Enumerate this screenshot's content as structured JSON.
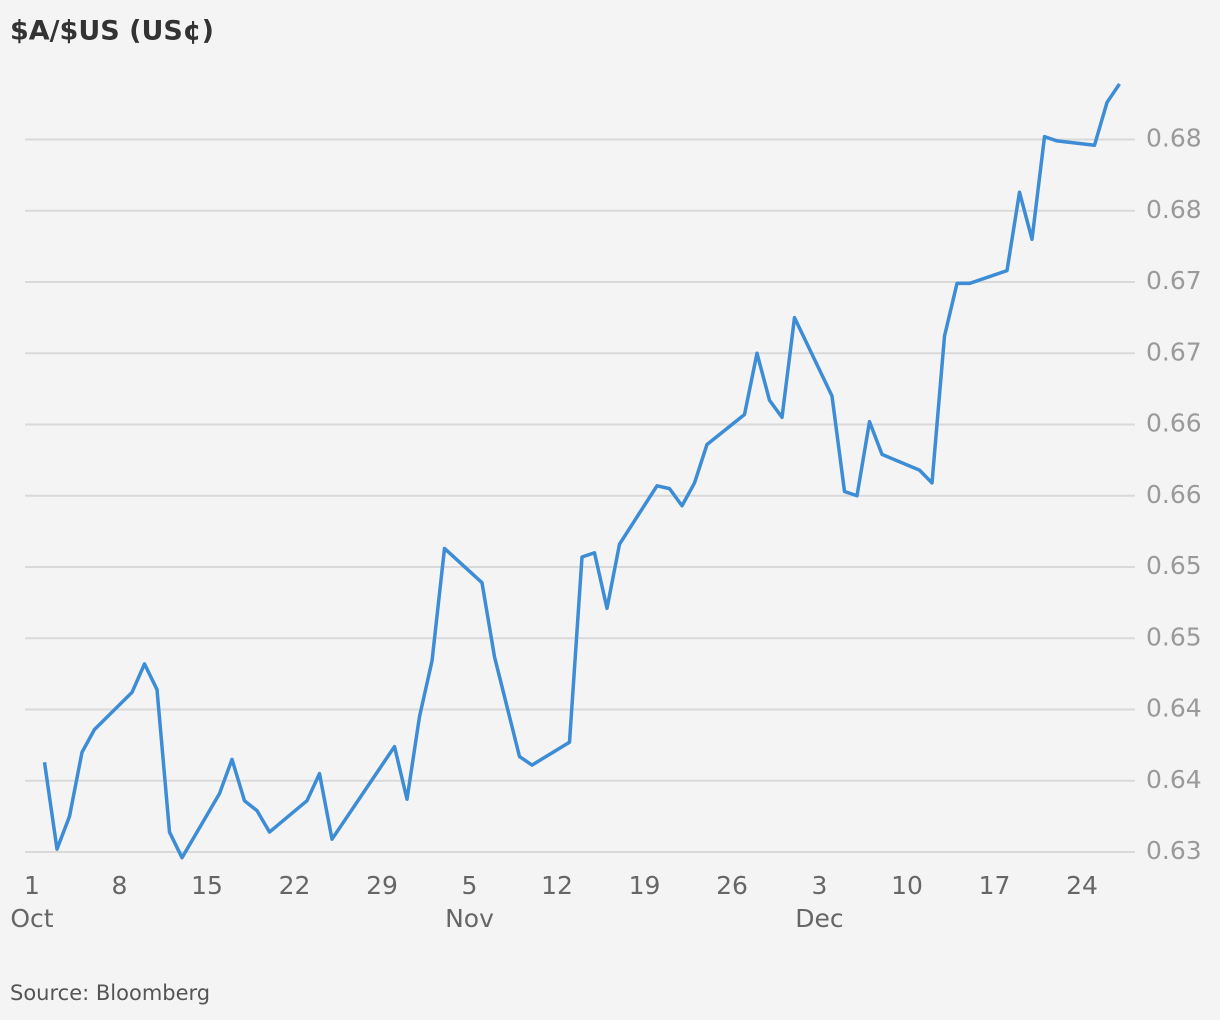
{
  "chart_data": {
    "type": "line",
    "title": "$A/$US (US¢)",
    "source": "Source: Bloomberg",
    "x": [
      "Oct 2",
      "Oct 3",
      "Oct 4",
      "Oct 5",
      "Oct 6",
      "Oct 9",
      "Oct 10",
      "Oct 11",
      "Oct 12",
      "Oct 13",
      "Oct 16",
      "Oct 17",
      "Oct 18",
      "Oct 19",
      "Oct 20",
      "Oct 23",
      "Oct 24",
      "Oct 25",
      "Oct 30",
      "Oct 31",
      "Nov 1",
      "Nov 2",
      "Nov 3",
      "Nov 6",
      "Nov 7",
      "Nov 9",
      "Nov 10",
      "Nov 13",
      "Nov 14",
      "Nov 15",
      "Nov 16",
      "Nov 17",
      "Nov 20",
      "Nov 21",
      "Nov 22",
      "Nov 23",
      "Nov 24",
      "Nov 27",
      "Nov 28",
      "Nov 29",
      "Nov 30",
      "Dec 1",
      "Dec 4",
      "Dec 5",
      "Dec 6",
      "Dec 7",
      "Dec 8",
      "Dec 11",
      "Dec 12",
      "Dec 13",
      "Dec 14",
      "Dec 15",
      "Dec 18",
      "Dec 19",
      "Dec 20",
      "Dec 21",
      "Dec 22",
      "Dec 25",
      "Dec 26",
      "Dec 27"
    ],
    "series": [
      {
        "color": "#3d8cd6",
        "values": [
          0.6363,
          0.6302,
          0.6325,
          0.637,
          0.6386,
          0.6412,
          0.6432,
          0.6414,
          0.6314,
          0.6296,
          0.6341,
          0.6365,
          0.6336,
          0.6329,
          0.6314,
          0.6336,
          0.6355,
          0.6309,
          0.6374,
          0.6337,
          0.6395,
          0.6434,
          0.6513,
          0.6489,
          0.6437,
          0.6367,
          0.6361,
          0.6377,
          0.6507,
          0.651,
          0.6471,
          0.6516,
          0.6557,
          0.6555,
          0.6543,
          0.6559,
          0.6586,
          0.6607,
          0.665,
          0.6617,
          0.6605,
          0.6675,
          0.662,
          0.6553,
          0.655,
          0.6602,
          0.6579,
          0.6568,
          0.6559,
          0.6662,
          0.6699,
          0.6699,
          0.6708,
          0.6763,
          0.673,
          0.6802,
          0.6799,
          0.6796,
          0.6826,
          0.6839
        ]
      }
    ],
    "xlim": [
      "Oct 1",
      "Dec 28"
    ],
    "xticks": [
      {
        "value": "Oct 1",
        "label": "1"
      },
      {
        "value": "Oct 8",
        "label": "8"
      },
      {
        "value": "Oct 15",
        "label": "15"
      },
      {
        "value": "Oct 22",
        "label": "22"
      },
      {
        "value": "Oct 29",
        "label": "29"
      },
      {
        "value": "Nov 5",
        "label": "5"
      },
      {
        "value": "Nov 12",
        "label": "12"
      },
      {
        "value": "Nov 19",
        "label": "19"
      },
      {
        "value": "Nov 26",
        "label": "26"
      },
      {
        "value": "Dec 3",
        "label": "3"
      },
      {
        "value": "Dec 10",
        "label": "10"
      },
      {
        "value": "Dec 17",
        "label": "17"
      },
      {
        "value": "Dec 24",
        "label": "24"
      }
    ],
    "xtick_months": [
      {
        "value": "Oct 1",
        "label": "Oct"
      },
      {
        "value": "Nov 5",
        "label": "Nov"
      },
      {
        "value": "Dec 3",
        "label": "Dec"
      }
    ],
    "ylim": [
      0.63,
      0.685
    ],
    "yticks": [
      0.63,
      {
        "value": 0.635,
        "label": "0.64"
      },
      0.64,
      {
        "value": 0.645,
        "label": "0.65"
      },
      0.65,
      {
        "value": 0.655,
        "label": "0.66"
      },
      0.66,
      {
        "value": 0.665,
        "label": "0.67"
      },
      0.67,
      {
        "value": 0.675,
        "label": "0.68"
      },
      0.68
    ],
    "grid": true
  }
}
